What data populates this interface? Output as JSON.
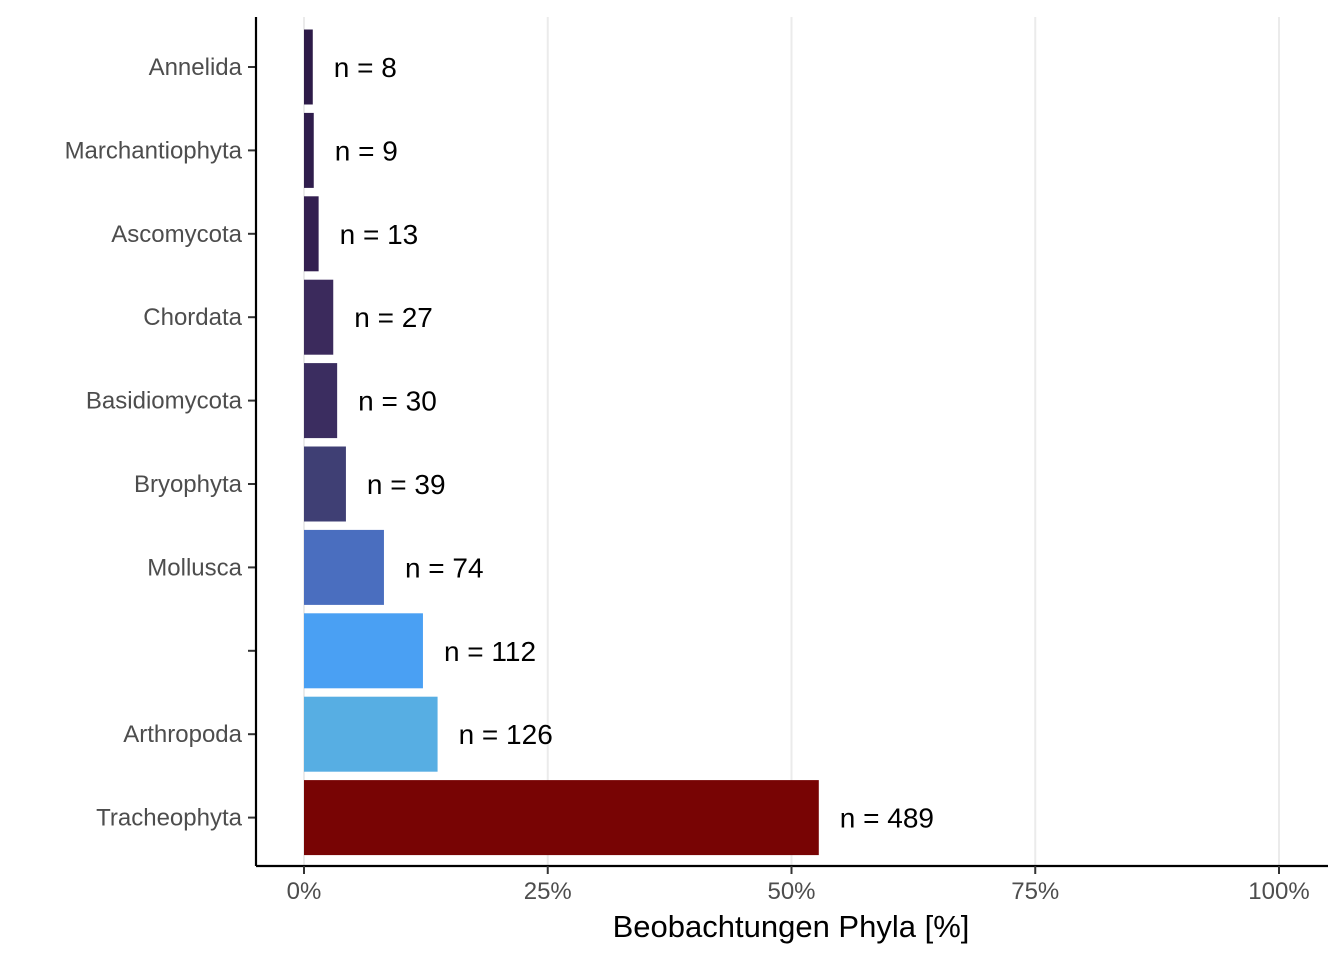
{
  "chart_data": {
    "type": "bar",
    "orientation": "horizontal",
    "categories": [
      "Annelida",
      "Marchantiophyta",
      "Ascomycota",
      "Chordata",
      "Basidiomycota",
      "Bryophyta",
      "Mollusca",
      "",
      "Arthropoda",
      "Tracheophyta"
    ],
    "values": [
      0.9,
      1.0,
      1.5,
      3.0,
      3.4,
      4.3,
      8.2,
      12.2,
      13.7,
      52.8
    ],
    "data_labels": [
      "n = 8",
      "n = 9",
      "n = 13",
      "n = 27",
      "n = 30",
      "n = 39",
      "n = 74",
      "n = 112",
      "n = 126",
      "n = 489"
    ],
    "colors": [
      "#2d1b48",
      "#2f1d4c",
      "#331f50",
      "#3b2a5c",
      "#3b2d60",
      "#3f3f74",
      "#4a6ebf",
      "#4aa0f3",
      "#57aee3",
      "#780404"
    ],
    "xlabel": "Beobachtungen Phyla [%]",
    "ylabel": "",
    "xlim": [
      0,
      100
    ],
    "x_ticks": [
      "0%",
      "25%",
      "50%",
      "75%",
      "100%"
    ],
    "grid": "vertical major gridlines",
    "legend": "none"
  }
}
